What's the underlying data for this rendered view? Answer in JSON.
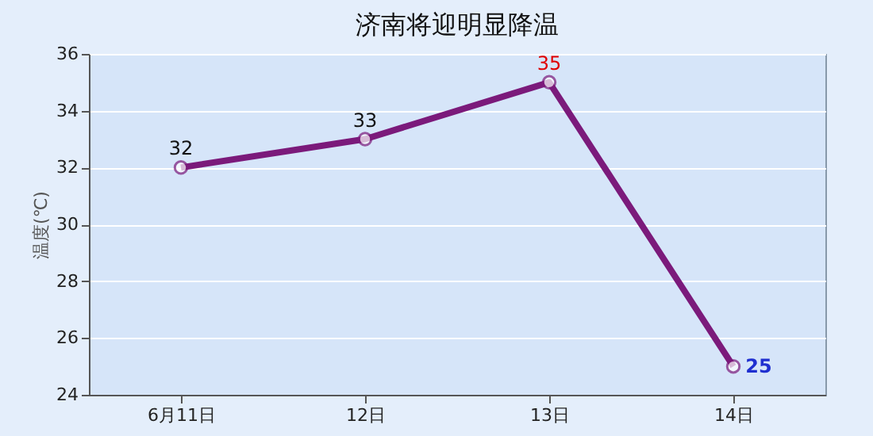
{
  "chart_data": {
    "type": "line",
    "title": "济南将迎明显降温",
    "ylabel": "温度(℃)",
    "categories": [
      "6月11日",
      "12日",
      "13日",
      "14日"
    ],
    "series": [
      {
        "color": "#7b1a7b",
        "values": [
          32,
          33,
          35,
          25
        ]
      }
    ],
    "ylim": [
      24,
      36
    ],
    "yticks": [
      24,
      26,
      28,
      30,
      32,
      34,
      36
    ],
    "grid": "y",
    "marker": "circle",
    "line_style": "solid",
    "data_labels": true
  }
}
